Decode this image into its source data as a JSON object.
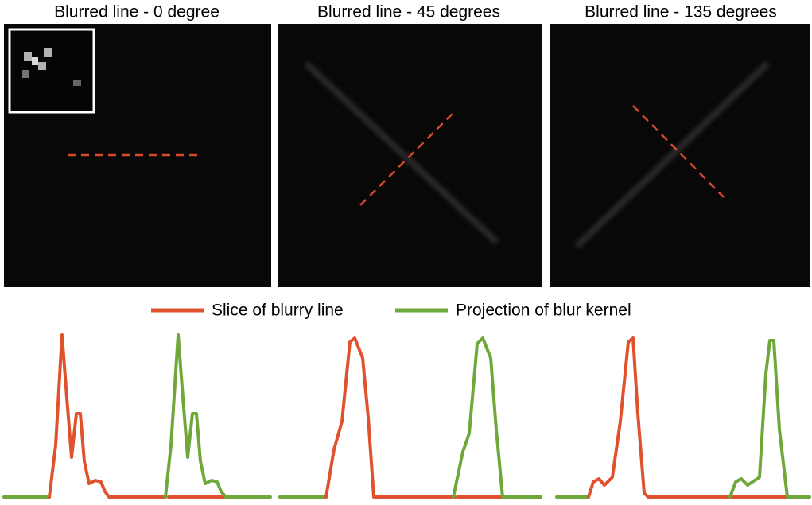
{
  "panels": [
    {
      "title": "Blurred line  - 0 degree"
    },
    {
      "title": "Blurred line  - 45 degrees"
    },
    {
      "title": "Blurred line  - 135 degrees"
    }
  ],
  "legend": {
    "items": [
      {
        "label": "Slice of blurry line",
        "color": "#e0522e"
      },
      {
        "label": "Projection of blur kernel",
        "color": "#6fa83a"
      }
    ]
  }
}
